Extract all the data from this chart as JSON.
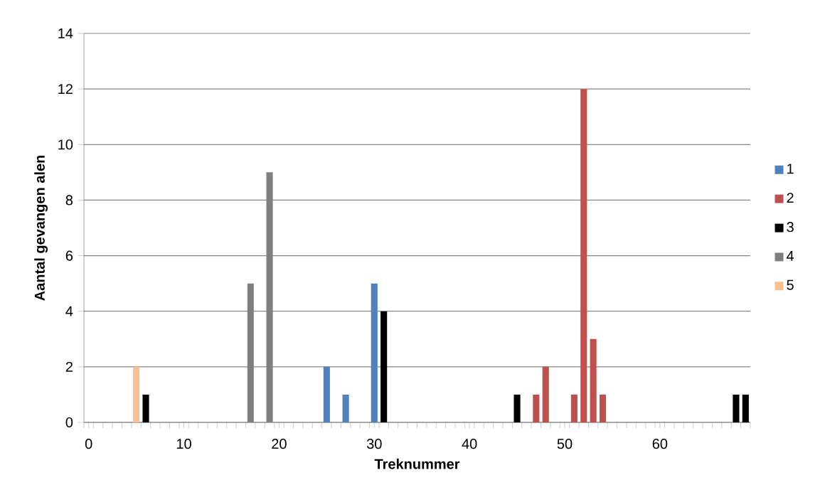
{
  "chart_data": {
    "type": "bar",
    "xlabel": "Treknummer",
    "ylabel": "Aantal gevangen alen",
    "series": [
      {
        "name": "1",
        "color": "#4f81bd",
        "x": [
          25,
          27,
          30
        ],
        "values": [
          2,
          1,
          5
        ]
      },
      {
        "name": "2",
        "color": "#c0504d",
        "x": [
          47,
          48,
          51,
          52,
          53,
          54
        ],
        "values": [
          1,
          2,
          1,
          12,
          3,
          1
        ]
      },
      {
        "name": "3",
        "color": "#000000",
        "x": [
          6,
          31,
          45,
          68,
          69
        ],
        "values": [
          1,
          4,
          1,
          1,
          1
        ]
      },
      {
        "name": "4",
        "color": "#7f7f7f",
        "x": [
          17,
          19
        ],
        "values": [
          5,
          9
        ]
      },
      {
        "name": "5",
        "color": "#fac090",
        "x": [
          5
        ],
        "values": [
          2
        ]
      }
    ],
    "xlim": [
      -0.5,
      69.5
    ],
    "xticks": [
      0,
      10,
      20,
      30,
      40,
      50,
      60,
      {
        "value": -0.5,
        "label": null
      },
      {
        "value": 0.5,
        "label": null
      },
      {
        "value": 1.5,
        "label": null
      },
      {
        "value": 2.5,
        "label": null
      },
      {
        "value": 3.5,
        "label": null
      },
      {
        "value": 4.5,
        "label": null
      },
      {
        "value": 5.5,
        "label": null
      },
      {
        "value": 6.5,
        "label": null
      },
      {
        "value": 7.5,
        "label": null
      },
      {
        "value": 8.5,
        "label": null
      },
      {
        "value": 9.5,
        "label": null
      },
      {
        "value": 10.5,
        "label": null
      },
      {
        "value": 11.5,
        "label": null
      },
      {
        "value": 12.5,
        "label": null
      },
      {
        "value": 13.5,
        "label": null
      },
      {
        "value": 14.5,
        "label": null
      },
      {
        "value": 15.5,
        "label": null
      },
      {
        "value": 16.5,
        "label": null
      },
      {
        "value": 17.5,
        "label": null
      },
      {
        "value": 18.5,
        "label": null
      },
      {
        "value": 19.5,
        "label": null
      },
      {
        "value": 20.5,
        "label": null
      },
      {
        "value": 21.5,
        "label": null
      },
      {
        "value": 22.5,
        "label": null
      },
      {
        "value": 23.5,
        "label": null
      },
      {
        "value": 24.5,
        "label": null
      },
      {
        "value": 25.5,
        "label": null
      },
      {
        "value": 26.5,
        "label": null
      },
      {
        "value": 27.5,
        "label": null
      },
      {
        "value": 28.5,
        "label": null
      },
      {
        "value": 29.5,
        "label": null
      },
      {
        "value": 30.5,
        "label": null
      },
      {
        "value": 31.5,
        "label": null
      },
      {
        "value": 32.5,
        "label": null
      },
      {
        "value": 33.5,
        "label": null
      },
      {
        "value": 34.5,
        "label": null
      },
      {
        "value": 35.5,
        "label": null
      },
      {
        "value": 36.5,
        "label": null
      },
      {
        "value": 37.5,
        "label": null
      },
      {
        "value": 38.5,
        "label": null
      },
      {
        "value": 39.5,
        "label": null
      },
      {
        "value": 40.5,
        "label": null
      },
      {
        "value": 41.5,
        "label": null
      },
      {
        "value": 42.5,
        "label": null
      },
      {
        "value": 43.5,
        "label": null
      },
      {
        "value": 44.5,
        "label": null
      },
      {
        "value": 45.5,
        "label": null
      },
      {
        "value": 46.5,
        "label": null
      },
      {
        "value": 47.5,
        "label": null
      },
      {
        "value": 48.5,
        "label": null
      },
      {
        "value": 49.5,
        "label": null
      },
      {
        "value": 50.5,
        "label": null
      },
      {
        "value": 51.5,
        "label": null
      },
      {
        "value": 52.5,
        "label": null
      },
      {
        "value": 53.5,
        "label": null
      },
      {
        "value": 54.5,
        "label": null
      },
      {
        "value": 55.5,
        "label": null
      },
      {
        "value": 56.5,
        "label": null
      },
      {
        "value": 57.5,
        "label": null
      },
      {
        "value": 58.5,
        "label": null
      },
      {
        "value": 59.5,
        "label": null
      },
      {
        "value": 60.5,
        "label": null
      },
      {
        "value": 61.5,
        "label": null
      },
      {
        "value": 62.5,
        "label": null
      },
      {
        "value": 63.5,
        "label": null
      },
      {
        "value": 64.5,
        "label": null
      },
      {
        "value": 65.5,
        "label": null
      },
      {
        "value": 66.5,
        "label": null
      },
      {
        "value": 67.5,
        "label": null
      },
      {
        "value": 68.5,
        "label": null
      },
      {
        "value": 69.5,
        "label": null
      }
    ],
    "ylim": [
      0,
      14
    ],
    "yticks": [
      0,
      2,
      4,
      6,
      8,
      10,
      12,
      14
    ],
    "grid": "y",
    "legend": "right"
  }
}
